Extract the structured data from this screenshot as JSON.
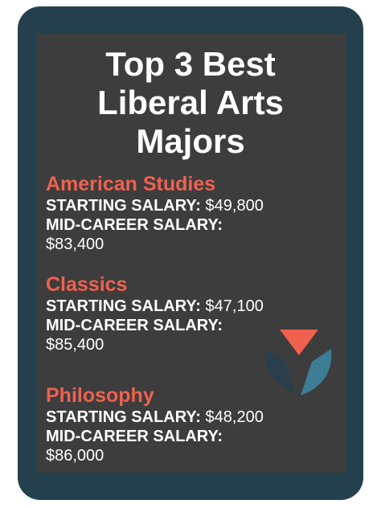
{
  "title": "Top 3 Best Liberal Arts Majors",
  "majors": [
    {
      "name": "American Studies",
      "starting_label": "STARTING SALARY:",
      "starting_value": "$49,800",
      "mid_label": "MID-CAREER SALARY:",
      "mid_value": "$83,400"
    },
    {
      "name": "Classics",
      "starting_label": "STARTING SALARY:",
      "starting_value": "$47,100",
      "mid_label": "MID-CAREER SALARY:",
      "mid_value": "$85,400"
    },
    {
      "name": "Philosophy",
      "starting_label": "STARTING SALARY:",
      "starting_value": "$48,200",
      "mid_label": "MID-CAREER SALARY:",
      "mid_value": "$86,000"
    }
  ]
}
